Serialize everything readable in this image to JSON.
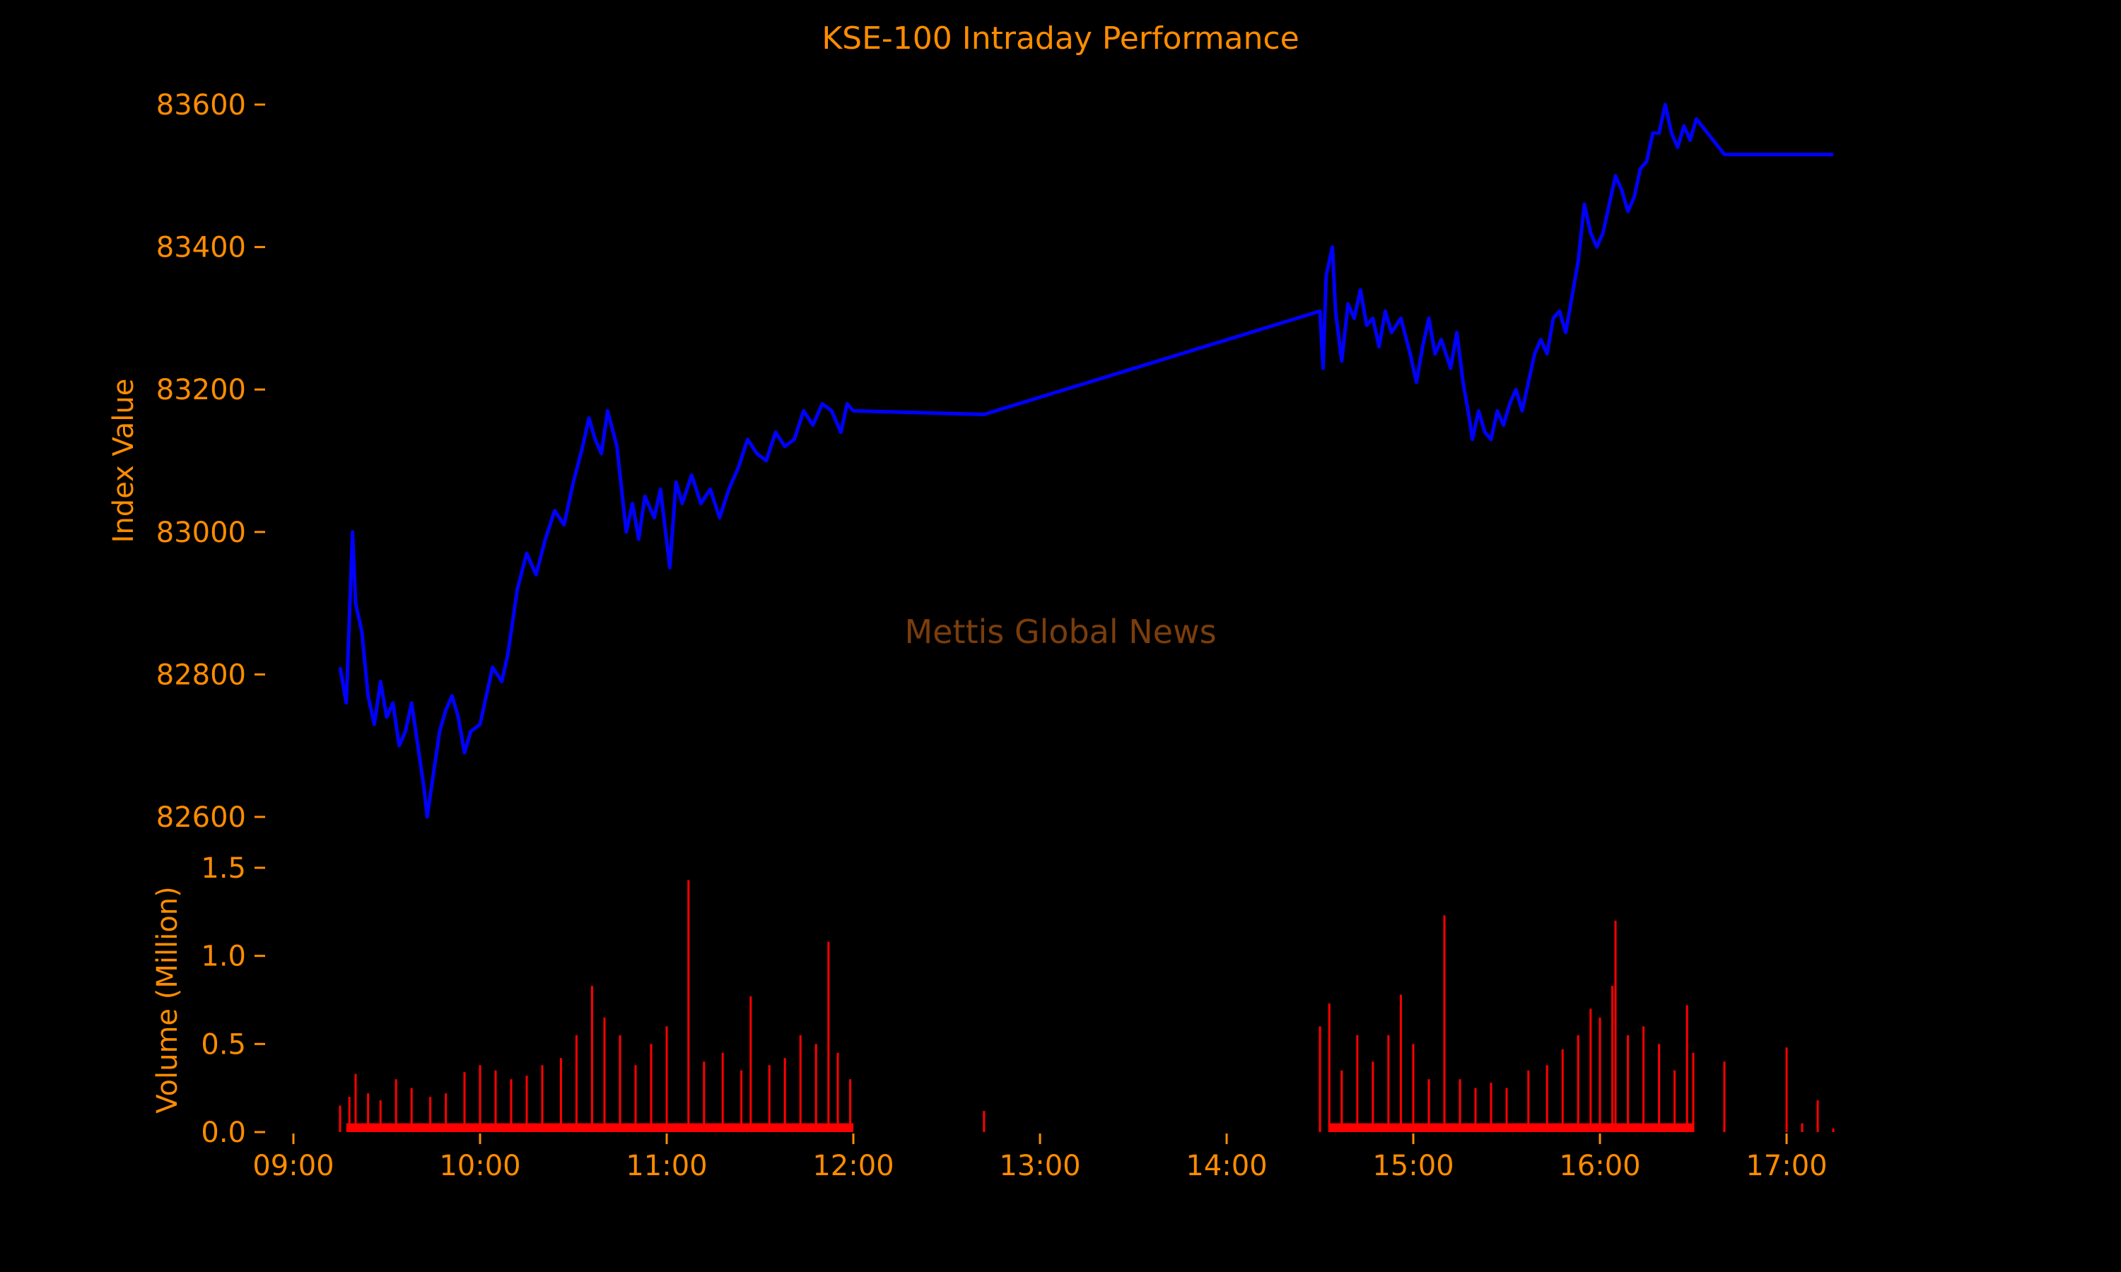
{
  "title": "KSE-100 Intraday Performance",
  "watermark": "Mettis Global News",
  "colors": {
    "background": "#000000",
    "text": "#ff8c00",
    "line": "#0000ff",
    "volume": "#ff0000",
    "watermark": "#7a3d0c"
  },
  "chart_data": [
    {
      "type": "line",
      "name": "index-panel",
      "title": "KSE-100 Intraday Performance",
      "ylabel": "Index Value",
      "xlabel": "",
      "ylim": [
        82600,
        83600
      ],
      "yticks": [
        82600,
        82800,
        83000,
        83200,
        83400,
        83600
      ],
      "grid": false,
      "legend": "none",
      "points": [
        [
          "09:15",
          82810
        ],
        [
          "09:17",
          82760
        ],
        [
          "09:18",
          82880
        ],
        [
          "09:19",
          83000
        ],
        [
          "09:20",
          82900
        ],
        [
          "09:22",
          82860
        ],
        [
          "09:24",
          82770
        ],
        [
          "09:26",
          82730
        ],
        [
          "09:28",
          82790
        ],
        [
          "09:30",
          82740
        ],
        [
          "09:32",
          82760
        ],
        [
          "09:34",
          82700
        ],
        [
          "09:36",
          82720
        ],
        [
          "09:38",
          82760
        ],
        [
          "09:40",
          82700
        ],
        [
          "09:42",
          82640
        ],
        [
          "09:43",
          82600
        ],
        [
          "09:45",
          82660
        ],
        [
          "09:47",
          82720
        ],
        [
          "09:49",
          82750
        ],
        [
          "09:51",
          82770
        ],
        [
          "09:53",
          82740
        ],
        [
          "09:55",
          82690
        ],
        [
          "09:57",
          82720
        ],
        [
          "10:00",
          82730
        ],
        [
          "10:04",
          82810
        ],
        [
          "10:07",
          82790
        ],
        [
          "10:09",
          82830
        ],
        [
          "10:12",
          82920
        ],
        [
          "10:15",
          82970
        ],
        [
          "10:18",
          82940
        ],
        [
          "10:21",
          82990
        ],
        [
          "10:24",
          83030
        ],
        [
          "10:27",
          83010
        ],
        [
          "10:30",
          83070
        ],
        [
          "10:33",
          83120
        ],
        [
          "10:35",
          83160
        ],
        [
          "10:37",
          83130
        ],
        [
          "10:39",
          83110
        ],
        [
          "10:41",
          83170
        ],
        [
          "10:44",
          83120
        ],
        [
          "10:47",
          83000
        ],
        [
          "10:49",
          83040
        ],
        [
          "10:51",
          82990
        ],
        [
          "10:53",
          83050
        ],
        [
          "10:56",
          83020
        ],
        [
          "10:58",
          83060
        ],
        [
          "11:01",
          82950
        ],
        [
          "11:03",
          83070
        ],
        [
          "11:05",
          83040
        ],
        [
          "11:08",
          83080
        ],
        [
          "11:11",
          83040
        ],
        [
          "11:14",
          83060
        ],
        [
          "11:17",
          83020
        ],
        [
          "11:20",
          83060
        ],
        [
          "11:23",
          83090
        ],
        [
          "11:26",
          83130
        ],
        [
          "11:29",
          83110
        ],
        [
          "11:32",
          83100
        ],
        [
          "11:35",
          83140
        ],
        [
          "11:38",
          83120
        ],
        [
          "11:41",
          83130
        ],
        [
          "11:44",
          83170
        ],
        [
          "11:47",
          83150
        ],
        [
          "11:50",
          83180
        ],
        [
          "11:53",
          83170
        ],
        [
          "11:56",
          83140
        ],
        [
          "11:58",
          83180
        ],
        [
          "12:00",
          83170
        ],
        [
          "12:42",
          83165
        ],
        [
          "14:30",
          83310
        ],
        [
          "14:31",
          83230
        ],
        [
          "14:32",
          83360
        ],
        [
          "14:34",
          83400
        ],
        [
          "14:35",
          83310
        ],
        [
          "14:37",
          83240
        ],
        [
          "14:39",
          83320
        ],
        [
          "14:41",
          83300
        ],
        [
          "14:43",
          83340
        ],
        [
          "14:45",
          83290
        ],
        [
          "14:47",
          83300
        ],
        [
          "14:49",
          83260
        ],
        [
          "14:51",
          83310
        ],
        [
          "14:53",
          83280
        ],
        [
          "14:56",
          83300
        ],
        [
          "14:59",
          83250
        ],
        [
          "15:01",
          83210
        ],
        [
          "15:03",
          83260
        ],
        [
          "15:05",
          83300
        ],
        [
          "15:07",
          83250
        ],
        [
          "15:09",
          83270
        ],
        [
          "15:12",
          83230
        ],
        [
          "15:14",
          83280
        ],
        [
          "15:16",
          83210
        ],
        [
          "15:18",
          83160
        ],
        [
          "15:19",
          83130
        ],
        [
          "15:21",
          83170
        ],
        [
          "15:23",
          83140
        ],
        [
          "15:25",
          83130
        ],
        [
          "15:27",
          83170
        ],
        [
          "15:29",
          83150
        ],
        [
          "15:31",
          83180
        ],
        [
          "15:33",
          83200
        ],
        [
          "15:35",
          83170
        ],
        [
          "15:37",
          83210
        ],
        [
          "15:39",
          83250
        ],
        [
          "15:41",
          83270
        ],
        [
          "15:43",
          83250
        ],
        [
          "15:45",
          83300
        ],
        [
          "15:47",
          83310
        ],
        [
          "15:49",
          83280
        ],
        [
          "15:51",
          83330
        ],
        [
          "15:53",
          83380
        ],
        [
          "15:55",
          83460
        ],
        [
          "15:57",
          83420
        ],
        [
          "15:59",
          83400
        ],
        [
          "16:01",
          83420
        ],
        [
          "16:03",
          83460
        ],
        [
          "16:05",
          83500
        ],
        [
          "16:07",
          83480
        ],
        [
          "16:09",
          83450
        ],
        [
          "16:11",
          83470
        ],
        [
          "16:13",
          83510
        ],
        [
          "16:15",
          83520
        ],
        [
          "16:17",
          83560
        ],
        [
          "16:19",
          83560
        ],
        [
          "16:21",
          83600
        ],
        [
          "16:23",
          83560
        ],
        [
          "16:25",
          83540
        ],
        [
          "16:27",
          83570
        ],
        [
          "16:29",
          83550
        ],
        [
          "16:31",
          83580
        ],
        [
          "16:40",
          83530
        ],
        [
          "17:15",
          83530
        ]
      ]
    },
    {
      "type": "bar",
      "name": "volume-panel",
      "ylabel": "Volume (Million)",
      "xlabel": "",
      "ylim": [
        0,
        1.5
      ],
      "yticks": [
        "0.0",
        "0.5",
        "1.0",
        "1.5"
      ],
      "xticks": [
        "09:00",
        "10:00",
        "11:00",
        "12:00",
        "13:00",
        "14:00",
        "15:00",
        "16:00",
        "17:00"
      ],
      "grid": false,
      "legend": "none",
      "bars": [
        [
          "09:15",
          0.15
        ],
        [
          "09:18",
          0.2
        ],
        [
          "09:20",
          0.33
        ],
        [
          "09:24",
          0.22
        ],
        [
          "09:28",
          0.18
        ],
        [
          "09:33",
          0.3
        ],
        [
          "09:38",
          0.25
        ],
        [
          "09:44",
          0.2
        ],
        [
          "09:49",
          0.22
        ],
        [
          "09:55",
          0.34
        ],
        [
          "10:00",
          0.38
        ],
        [
          "10:05",
          0.35
        ],
        [
          "10:10",
          0.3
        ],
        [
          "10:15",
          0.32
        ],
        [
          "10:20",
          0.38
        ],
        [
          "10:26",
          0.42
        ],
        [
          "10:31",
          0.55
        ],
        [
          "10:36",
          0.83
        ],
        [
          "10:40",
          0.65
        ],
        [
          "10:45",
          0.55
        ],
        [
          "10:50",
          0.38
        ],
        [
          "10:55",
          0.5
        ],
        [
          "11:00",
          0.6
        ],
        [
          "11:07",
          1.43
        ],
        [
          "11:12",
          0.4
        ],
        [
          "11:18",
          0.45
        ],
        [
          "11:24",
          0.35
        ],
        [
          "11:27",
          0.77
        ],
        [
          "11:33",
          0.38
        ],
        [
          "11:38",
          0.42
        ],
        [
          "11:43",
          0.55
        ],
        [
          "11:48",
          0.5
        ],
        [
          "11:52",
          1.08
        ],
        [
          "11:55",
          0.45
        ],
        [
          "11:59",
          0.3
        ],
        [
          "12:42",
          0.12
        ],
        [
          "14:30",
          0.6
        ],
        [
          "14:33",
          0.73
        ],
        [
          "14:37",
          0.35
        ],
        [
          "14:42",
          0.55
        ],
        [
          "14:47",
          0.4
        ],
        [
          "14:52",
          0.55
        ],
        [
          "14:56",
          0.78
        ],
        [
          "15:00",
          0.5
        ],
        [
          "15:05",
          0.3
        ],
        [
          "15:10",
          1.23
        ],
        [
          "15:15",
          0.3
        ],
        [
          "15:20",
          0.25
        ],
        [
          "15:25",
          0.28
        ],
        [
          "15:30",
          0.25
        ],
        [
          "15:37",
          0.35
        ],
        [
          "15:43",
          0.38
        ],
        [
          "15:48",
          0.47
        ],
        [
          "15:53",
          0.55
        ],
        [
          "15:57",
          0.7
        ],
        [
          "16:00",
          0.65
        ],
        [
          "16:04",
          0.83
        ],
        [
          "16:05",
          1.2
        ],
        [
          "16:09",
          0.55
        ],
        [
          "16:14",
          0.6
        ],
        [
          "16:19",
          0.5
        ],
        [
          "16:24",
          0.35
        ],
        [
          "16:28",
          0.72
        ],
        [
          "16:30",
          0.45
        ],
        [
          "16:40",
          0.4
        ],
        [
          "17:00",
          0.48
        ],
        [
          "17:05",
          0.05
        ],
        [
          "17:10",
          0.18
        ],
        [
          "17:15",
          0.02
        ]
      ]
    }
  ]
}
